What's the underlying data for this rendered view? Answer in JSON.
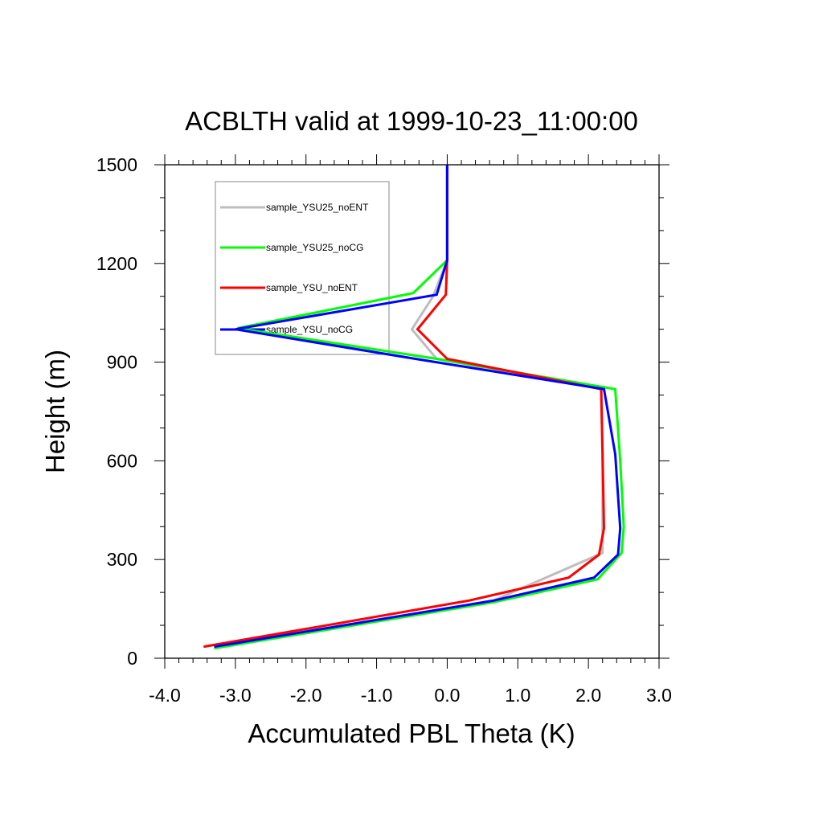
{
  "chart_data": {
    "type": "line",
    "title": "ACBLTH valid at 1999-10-23_11:00:00",
    "xlabel": "Accumulated PBL Theta (K)",
    "ylabel": "Height (m)",
    "xlim": [
      -4.0,
      3.0
    ],
    "ylim": [
      0,
      1500
    ],
    "xticks": [
      "-4.0",
      "-3.0",
      "-2.0",
      "-1.0",
      "0.0",
      "1.0",
      "2.0",
      "3.0"
    ],
    "yticks": [
      "0",
      "300",
      "600",
      "900",
      "1200",
      "1500"
    ],
    "legend_position": "top-left",
    "grid": false,
    "series": [
      {
        "name": "sample_YSU25_noENT",
        "color": "#bdbdbd",
        "points": [
          [
            -3.3,
            35
          ],
          [
            0.65,
            175
          ],
          [
            2.2,
            320
          ],
          [
            2.2,
            400
          ],
          [
            2.2,
            620
          ],
          [
            2.18,
            818
          ],
          [
            -0.15,
            910
          ],
          [
            -0.5,
            1000
          ],
          [
            -0.2,
            1100
          ],
          [
            0.0,
            1210
          ],
          [
            0.0,
            1500
          ]
        ]
      },
      {
        "name": "sample_YSU25_noCG",
        "color": "#00ff00",
        "points": [
          [
            -3.3,
            30
          ],
          [
            0.65,
            170
          ],
          [
            2.13,
            240
          ],
          [
            2.47,
            320
          ],
          [
            2.5,
            400
          ],
          [
            2.45,
            600
          ],
          [
            2.38,
            818
          ],
          [
            -0.15,
            910
          ],
          [
            -2.97,
            1003
          ],
          [
            -0.48,
            1110
          ],
          [
            0.0,
            1210
          ],
          [
            0.0,
            1500
          ]
        ]
      },
      {
        "name": "sample_YSU_noENT",
        "color": "#ff0000",
        "points": [
          [
            -3.45,
            35
          ],
          [
            0.3,
            175
          ],
          [
            1.72,
            245
          ],
          [
            2.15,
            315
          ],
          [
            2.22,
            395
          ],
          [
            2.2,
            620
          ],
          [
            2.18,
            818
          ],
          [
            0.0,
            910
          ],
          [
            -0.42,
            1000
          ],
          [
            -0.02,
            1105
          ],
          [
            0.0,
            1210
          ],
          [
            0.0,
            1500
          ]
        ]
      },
      {
        "name": "sample_YSU_noCG",
        "color": "#0000ff",
        "points": [
          [
            -3.3,
            35
          ],
          [
            0.65,
            175
          ],
          [
            2.08,
            245
          ],
          [
            2.42,
            315
          ],
          [
            2.45,
            395
          ],
          [
            2.38,
            620
          ],
          [
            2.22,
            818
          ],
          [
            -0.45,
            910
          ],
          [
            -3.0,
            1000
          ],
          [
            -0.15,
            1105
          ],
          [
            0.0,
            1210
          ],
          [
            0.0,
            1500
          ]
        ]
      }
    ]
  }
}
